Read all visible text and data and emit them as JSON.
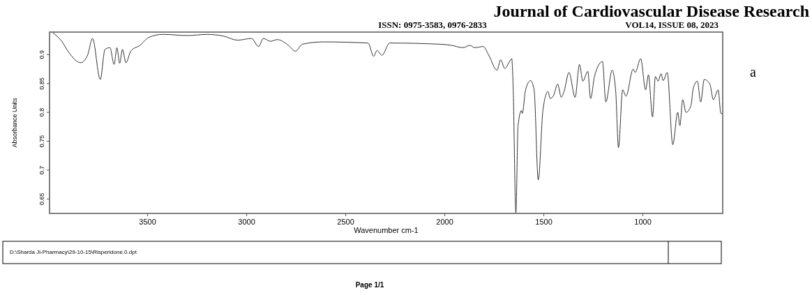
{
  "chart_data": {
    "type": "line",
    "xlabel": "Wavenumber cm-1",
    "ylabel": "Absorbance Units",
    "annotations": [
      "Journal of Cardiovascular Disease Research",
      "ISSN: 0975-3583, 0976-2833",
      "VOL14, ISSUE 08, 2023",
      "a",
      "D:\\Sharda Ji-Pharmacy\\29-10-15\\Risperidone.0.dpt",
      "Page 1/1"
    ],
    "xlim": [
      3995,
      597
    ],
    "xticks": [
      3500,
      3000,
      2500,
      2000,
      1500,
      1000
    ],
    "ylim": [
      0.625,
      0.939
    ],
    "yticks": [
      0.65,
      0.7,
      0.75,
      0.8,
      0.85,
      0.9
    ],
    "grid": false,
    "marker": "none",
    "line_style": "solid",
    "series": [
      {
        "color": "#333333",
        "x": [
          3979,
          3933,
          3898,
          3838,
          3803,
          3778,
          3739,
          3715,
          3690,
          3669,
          3655,
          3641,
          3627,
          3609,
          3585,
          3539,
          3493,
          3423,
          3300,
          3200,
          3116,
          3046,
          2975,
          2940,
          2915,
          2880,
          2845,
          2789,
          2754,
          2718,
          2613,
          2387,
          2359,
          2342,
          2317,
          2278,
          2025,
          1965,
          1908,
          1873,
          1849,
          1806,
          1778,
          1736,
          1718,
          1697,
          1673,
          1662,
          1655,
          1641,
          1630,
          1613,
          1609,
          1592,
          1567,
          1549,
          1528,
          1504,
          1479,
          1468,
          1451,
          1430,
          1412,
          1398,
          1373,
          1342,
          1320,
          1303,
          1278,
          1264,
          1243,
          1204,
          1187,
          1155,
          1137,
          1123,
          1102,
          1085,
          1049,
          1039,
          1011,
          986,
          972,
          951,
          937,
          923,
          908,
          898,
          877,
          849,
          824,
          813,
          799,
          782,
          757,
          746,
          725,
          708,
          690,
          662,
          644,
          620,
          606,
          598
        ],
        "values": [
          0.938,
          0.923,
          0.904,
          0.886,
          0.899,
          0.928,
          0.857,
          0.909,
          0.912,
          0.883,
          0.912,
          0.885,
          0.909,
          0.886,
          0.906,
          0.916,
          0.93,
          0.935,
          0.933,
          0.935,
          0.932,
          0.925,
          0.928,
          0.914,
          0.928,
          0.923,
          0.926,
          0.916,
          0.906,
          0.918,
          0.922,
          0.92,
          0.897,
          0.907,
          0.899,
          0.92,
          0.918,
          0.916,
          0.912,
          0.916,
          0.912,
          0.914,
          0.899,
          0.873,
          0.891,
          0.876,
          0.888,
          0.893,
          0.847,
          0.626,
          0.777,
          0.803,
          0.798,
          0.839,
          0.855,
          0.839,
          0.683,
          0.805,
          0.836,
          0.824,
          0.829,
          0.849,
          0.826,
          0.836,
          0.869,
          0.826,
          0.883,
          0.854,
          0.871,
          0.824,
          0.864,
          0.888,
          0.818,
          0.873,
          0.836,
          0.739,
          0.839,
          0.828,
          0.875,
          0.869,
          0.893,
          0.839,
          0.865,
          0.792,
          0.862,
          0.854,
          0.867,
          0.855,
          0.869,
          0.744,
          0.8,
          0.777,
          0.822,
          0.8,
          0.812,
          0.841,
          0.854,
          0.818,
          0.857,
          0.849,
          0.822,
          0.839,
          0.798,
          0.798
        ]
      }
    ]
  }
}
